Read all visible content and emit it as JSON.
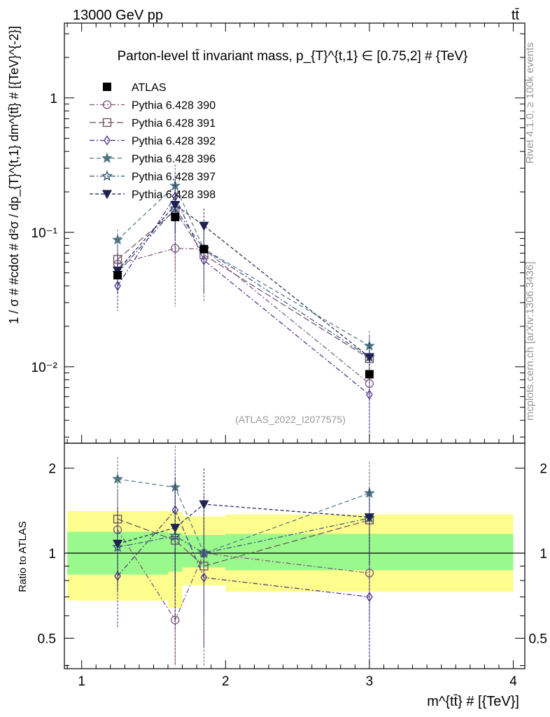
{
  "header": {
    "energy_label": "13000 GeV pp",
    "process_label": "tt̄"
  },
  "side_labels": {
    "rivet": "Rivet 4.1.0, ≥ 100k events",
    "mcplots": "mcplots.cern.ch [arXiv:1306.3436]"
  },
  "watermark": "(ATLAS_2022_I2077575)",
  "colors": {
    "band_inner": "#99f98c",
    "band_outer": "#fdfd8d",
    "py390": "#7a5577",
    "py391": "#6e4a5b",
    "py392": "#4a2a88",
    "py396": "#4f7483",
    "py397": "#36547c",
    "py398": "#1f2250"
  },
  "chart_data": {
    "type": "scatter",
    "title": "Parton-level tt̄ invariant mass, p_{T}^{t,1} ∈ [0.75,2] # {TeV}",
    "xlabel": "m^{tt̄} # [{TeV}]",
    "ylabel": "1 / σ # #cdot # d²σ / dp_{T}^{t,1} dm^{tt̄} # [{TeV}^{-2}]",
    "ratio_ylabel": "Ratio to ATLAS",
    "xlim": [
      0.88,
      4.08
    ],
    "ylim": [
      0.0027,
      3.6
    ],
    "ratio_ylim": [
      0.39,
      2.45
    ],
    "yscale": "log",
    "x_ticks": [
      1,
      2,
      3,
      4
    ],
    "x_tick_labels": [
      "1",
      "2",
      "3",
      "4"
    ],
    "y_tick_labels": [
      {
        "value": 1,
        "label": "1"
      },
      {
        "value": 0.1,
        "label": "10⁻¹"
      },
      {
        "value": 0.01,
        "label": "10⁻²"
      }
    ],
    "ratio_tick_labels": [
      {
        "value": 0.5,
        "label": "0.5"
      },
      {
        "value": 1,
        "label": "1"
      },
      {
        "value": 2,
        "label": "2"
      }
    ],
    "bins": [
      [
        0.9,
        1.6
      ],
      [
        1.6,
        1.7
      ],
      [
        1.7,
        2.0
      ],
      [
        2.0,
        4.0
      ]
    ],
    "band_inner": [
      [
        0.84,
        1.19
      ],
      [
        0.86,
        1.18
      ],
      [
        0.89,
        1.16
      ],
      [
        0.87,
        1.17
      ]
    ],
    "band_outer": [
      [
        0.68,
        1.41
      ],
      [
        0.64,
        1.4
      ],
      [
        0.77,
        1.35
      ],
      [
        0.73,
        1.37
      ]
    ],
    "x": [
      1.25,
      1.65,
      1.85,
      3.0
    ],
    "data": {
      "name": "ATLAS",
      "values": [
        0.048,
        0.13,
        0.075,
        0.0088
      ]
    },
    "series": [
      {
        "key": "py390",
        "name": "Pythia 6.428 390",
        "marker": "circle-open",
        "dash": "7,3,2,3",
        "values": [
          0.058,
          0.076,
          0.075,
          0.0075
        ],
        "ratios": [
          1.21,
          0.58,
          1.0,
          0.85
        ],
        "err_lo": [
          0.035,
          0.028,
          0.03,
          0.003
        ],
        "err_hi": [
          0.08,
          0.135,
          0.12,
          0.012
        ]
      },
      {
        "key": "py391",
        "name": "Pythia 6.428 391",
        "marker": "square-open",
        "dash": "9,4",
        "values": [
          0.063,
          0.145,
          0.068,
          0.0115
        ],
        "ratios": [
          1.32,
          1.11,
          0.9,
          1.31
        ],
        "err_lo": [
          0.04,
          0.05,
          0.035,
          0.005
        ],
        "err_hi": [
          0.09,
          0.25,
          0.11,
          0.017
        ]
      },
      {
        "key": "py392",
        "name": "Pythia 6.428 392",
        "marker": "diamond-open",
        "dash": "7,3,2,3",
        "values": [
          0.04,
          0.185,
          0.062,
          0.0062
        ],
        "ratios": [
          0.83,
          1.42,
          0.82,
          0.7
        ],
        "err_lo": [
          0.026,
          0.07,
          0.035,
          0.003
        ],
        "err_hi": [
          0.058,
          0.28,
          0.1,
          0.0105
        ]
      },
      {
        "key": "py396",
        "name": "Pythia 6.428 396",
        "marker": "star-filled",
        "dash": "6,4",
        "values": [
          0.088,
          0.222,
          0.075,
          0.0143
        ],
        "ratios": [
          1.83,
          1.71,
          1.0,
          1.63
        ],
        "err_lo": [
          0.07,
          0.12,
          0.04,
          0.01
        ],
        "err_hi": [
          0.105,
          0.32,
          0.11,
          0.0185
        ]
      },
      {
        "key": "py397",
        "name": "Pythia 6.428 397",
        "marker": "star-open",
        "dash": "7,3,2,3",
        "values": [
          0.05,
          0.15,
          0.075,
          0.0118
        ],
        "ratios": [
          1.05,
          1.15,
          1.0,
          1.33
        ],
        "err_lo": [
          0.035,
          0.09,
          0.045,
          0.008
        ],
        "err_hi": [
          0.068,
          0.23,
          0.11,
          0.015
        ]
      },
      {
        "key": "py398",
        "name": "Pythia 6.428 398",
        "marker": "triangle-down-filled",
        "dash": "5,3",
        "values": [
          0.052,
          0.16,
          0.112,
          0.0118
        ],
        "ratios": [
          1.08,
          1.23,
          1.49,
          1.34
        ],
        "err_lo": [
          0.035,
          0.1,
          0.07,
          0.008
        ],
        "err_hi": [
          0.07,
          0.24,
          0.15,
          0.015
        ]
      }
    ]
  }
}
